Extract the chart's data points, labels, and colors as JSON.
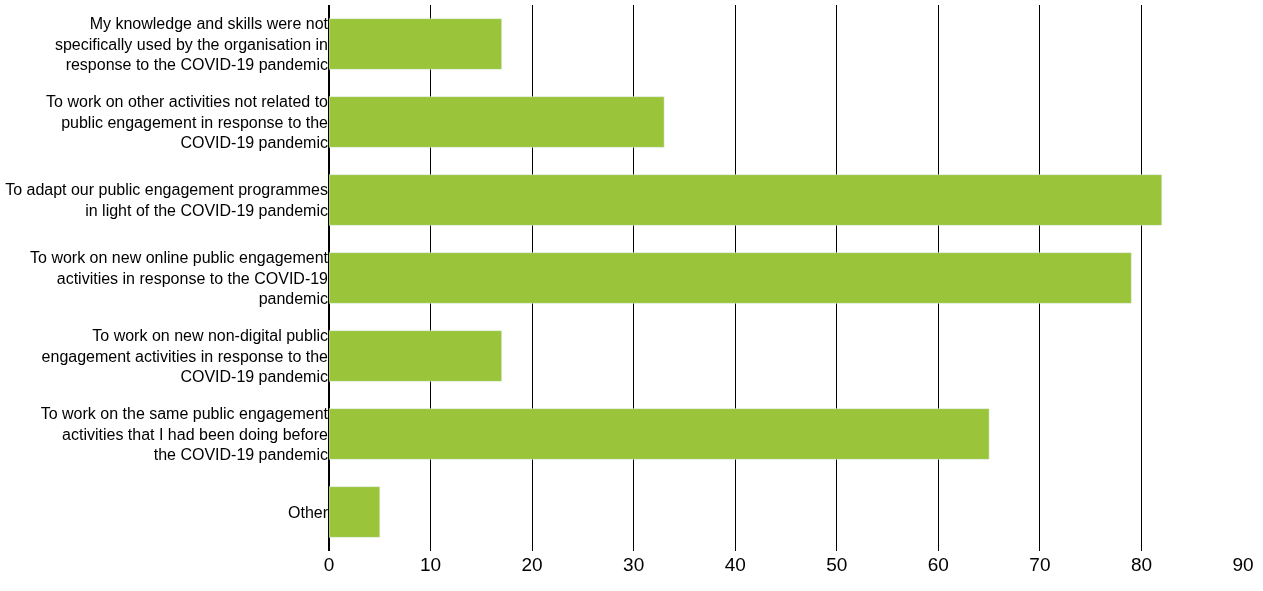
{
  "chart_data": {
    "type": "bar",
    "orientation": "horizontal",
    "categories": [
      "My knowledge and skills were not specifically used by the organisation in response to the COVID-19 pandemic",
      "To work on other activities not related to public engagement in response to the COVID-19 pandemic",
      "To adapt our public engagement programmes in light of the COVID-19 pandemic",
      "To work on new online public engagement activities in response to the COVID-19 pandemic",
      "To work on new non-digital public engagement activities in response to the COVID-19 pandemic",
      "To work on the same public engagement activities that I had been doing before the COVID-19 pandemic",
      "Other"
    ],
    "values": [
      17,
      33,
      82,
      79,
      17,
      65,
      5
    ],
    "color": "#9ac43a",
    "xlim": [
      0,
      90
    ],
    "xticks": [
      0,
      10,
      20,
      30,
      40,
      50,
      60,
      70,
      80,
      90
    ],
    "grid": "x",
    "legend": false
  }
}
